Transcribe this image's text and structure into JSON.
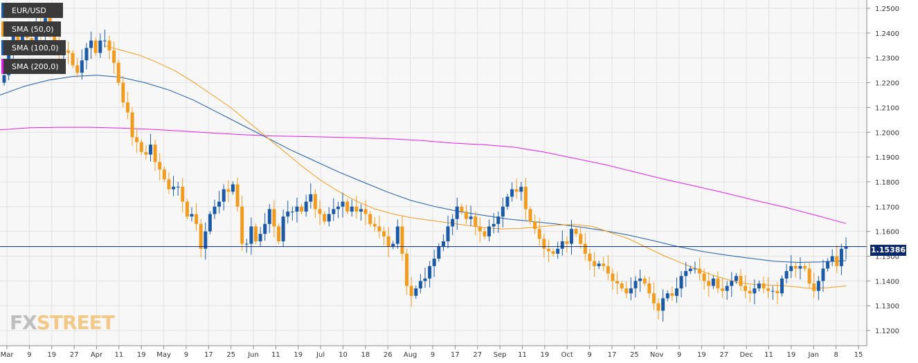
{
  "legend": [
    {
      "label": "EUR/USD",
      "color": "#1c5aa6"
    },
    {
      "label": "SMA (50,0)",
      "color": "#f29c1f"
    },
    {
      "label": "SMA (100,0)",
      "color": "#1c5aa6"
    },
    {
      "label": "SMA (200,0)",
      "color": "#e11de6"
    }
  ],
  "current_price": "1.15386",
  "watermark": {
    "fx": "FX",
    "street": "STREET"
  },
  "colors": {
    "bull": "#1c5aa6",
    "bear": "#f29c1f",
    "sma50": "#f29c1f",
    "sma100": "#1c5aa6",
    "sma200": "#e11de6",
    "price_line": "#0b2a6b"
  },
  "chart_data": {
    "type": "candlestick",
    "symbol": "EUR/USD",
    "ylim": [
      1.115,
      1.25
    ],
    "y_ticks": [
      "1.2500",
      "1.2400",
      "1.2300",
      "1.2200",
      "1.2100",
      "1.2000",
      "1.1900",
      "1.1800",
      "1.1700",
      "1.1600",
      "1.1500",
      "1.1400",
      "1.1300",
      "1.1200"
    ],
    "x_ticks": [
      "Mar",
      "9",
      "19",
      "27",
      "Apr",
      "11",
      "19",
      "May",
      "9",
      "17",
      "25",
      "Jun",
      "11",
      "19",
      "Jul",
      "10",
      "18",
      "26",
      "Aug",
      "9",
      "17",
      "27",
      "Sep",
      "11",
      "19",
      "Oct",
      "9",
      "17",
      "25",
      "Nov",
      "9",
      "19",
      "27",
      "Dec",
      "11",
      "19",
      "Jan",
      "8",
      "15"
    ],
    "current_price": 1.15386,
    "closes": [
      1.223,
      1.232,
      1.24,
      1.236,
      1.241,
      1.238,
      1.236,
      1.244,
      1.24,
      1.246,
      1.239,
      1.237,
      1.232,
      1.233,
      1.232,
      1.227,
      1.224,
      1.229,
      1.234,
      1.237,
      1.232,
      1.237,
      1.237,
      1.233,
      1.228,
      1.22,
      1.212,
      1.208,
      1.198,
      1.196,
      1.192,
      1.191,
      1.195,
      1.188,
      1.185,
      1.181,
      1.177,
      1.178,
      1.178,
      1.172,
      1.166,
      1.167,
      1.163,
      1.153,
      1.16,
      1.167,
      1.17,
      1.172,
      1.177,
      1.176,
      1.179,
      1.17,
      1.155,
      1.155,
      1.162,
      1.156,
      1.159,
      1.163,
      1.169,
      1.162,
      1.156,
      1.166,
      1.168,
      1.168,
      1.17,
      1.168,
      1.172,
      1.175,
      1.169,
      1.167,
      1.164,
      1.167,
      1.169,
      1.17,
      1.172,
      1.168,
      1.17,
      1.168,
      1.169,
      1.167,
      1.163,
      1.162,
      1.16,
      1.158,
      1.154,
      1.155,
      1.162,
      1.151,
      1.138,
      1.134,
      1.137,
      1.14,
      1.141,
      1.146,
      1.149,
      1.154,
      1.156,
      1.162,
      1.165,
      1.17,
      1.168,
      1.165,
      1.166,
      1.162,
      1.16,
      1.158,
      1.162,
      1.163,
      1.166,
      1.17,
      1.174,
      1.177,
      1.176,
      1.178,
      1.169,
      1.164,
      1.161,
      1.157,
      1.153,
      1.152,
      1.151,
      1.153,
      1.156,
      1.155,
      1.161,
      1.159,
      1.155,
      1.151,
      1.148,
      1.146,
      1.147,
      1.146,
      1.143,
      1.14,
      1.139,
      1.137,
      1.135,
      1.137,
      1.14,
      1.141,
      1.139,
      1.135,
      1.131,
      1.128,
      1.133,
      1.135,
      1.134,
      1.137,
      1.142,
      1.144,
      1.145,
      1.145,
      1.143,
      1.14,
      1.138,
      1.141,
      1.137,
      1.136,
      1.138,
      1.14,
      1.142,
      1.138,
      1.136,
      1.135,
      1.137,
      1.139,
      1.137,
      1.136,
      1.136,
      1.135,
      1.141,
      1.144,
      1.146,
      1.145,
      1.146,
      1.145,
      1.139,
      1.136,
      1.14,
      1.145,
      1.148,
      1.15,
      1.146,
      1.153,
      1.154
    ],
    "sma50": [
      1.235,
      1.233,
      1.231,
      1.228,
      1.2245,
      1.22,
      1.215,
      1.21,
      1.204,
      1.198,
      1.192,
      1.186,
      1.1805,
      1.176,
      1.172,
      1.169,
      1.167,
      1.1655,
      1.1645,
      1.1635,
      1.1625,
      1.1615,
      1.161,
      1.1612,
      1.1618,
      1.1625,
      1.1628,
      1.162,
      1.1595,
      1.157,
      1.1535,
      1.15,
      1.147,
      1.144,
      1.1415,
      1.1395,
      1.1385,
      1.1383,
      1.1378,
      1.137,
      1.1373,
      1.138
    ],
    "sma100": [
      1.215,
      1.2185,
      1.221,
      1.2225,
      1.223,
      1.2222,
      1.22,
      1.217,
      1.213,
      1.208,
      1.203,
      1.198,
      1.193,
      1.1885,
      1.184,
      1.18,
      1.176,
      1.1725,
      1.17,
      1.168,
      1.1665,
      1.165,
      1.164,
      1.163,
      1.1618,
      1.1603,
      1.1585,
      1.1563,
      1.154,
      1.152,
      1.1505,
      1.1492,
      1.148,
      1.1475,
      1.1477,
      1.1482
    ],
    "sma200": [
      1.201,
      1.2018,
      1.202,
      1.202,
      1.2017,
      1.2012,
      1.2005,
      1.1997,
      1.199,
      1.1985,
      1.1983,
      1.198,
      1.1977,
      1.1973,
      1.1966,
      1.1956,
      1.195,
      1.194,
      1.192,
      1.1895,
      1.187,
      1.184,
      1.181,
      1.1783,
      1.1755,
      1.1725,
      1.1697,
      1.1665,
      1.1632
    ]
  }
}
